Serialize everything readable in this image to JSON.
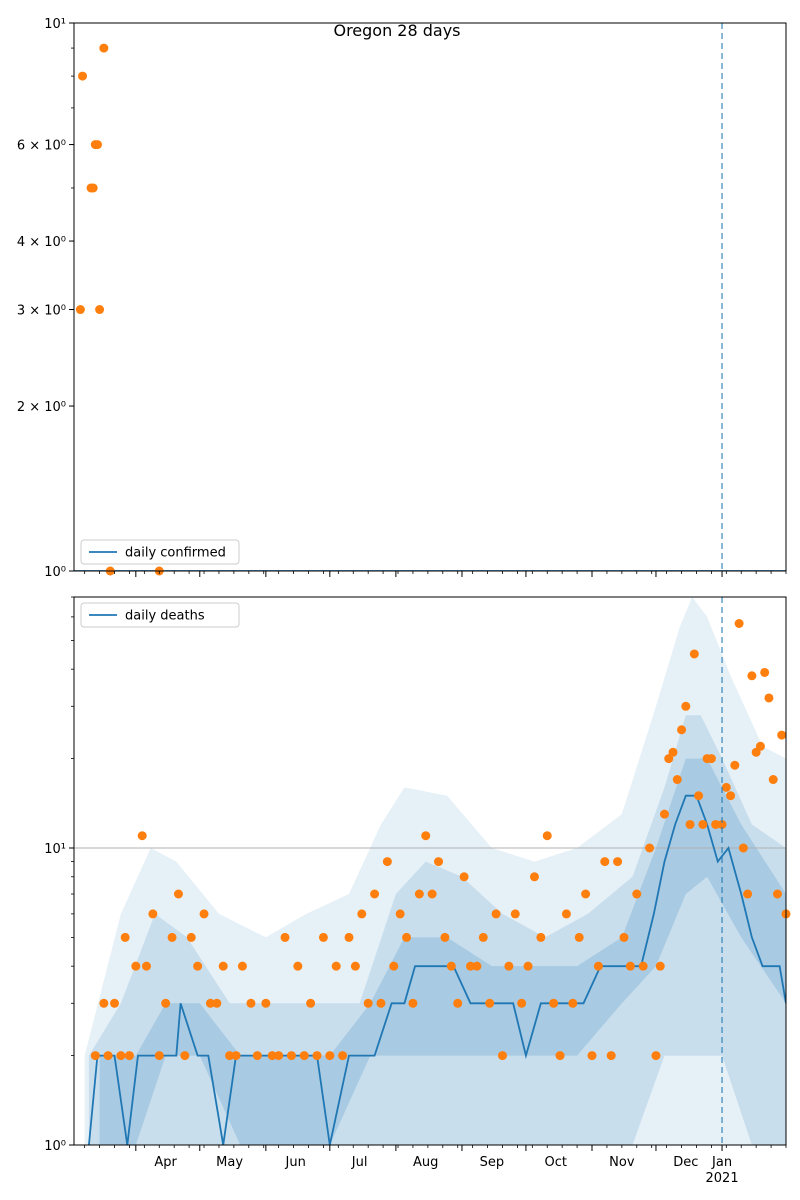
{
  "figure": {
    "title": "Oregon 28 days",
    "x_tick_labels": [
      "Apr",
      "May",
      "Jun",
      "Jul",
      "Aug",
      "Sep",
      "Oct",
      "Nov",
      "Dec",
      "Jan"
    ],
    "year_label": "2021",
    "forecast_start": "2021-01-01",
    "colors": {
      "line": "#1f77b4",
      "points": "#ff7f0e",
      "band": "#1f77b4",
      "vline": "#1f77b4"
    }
  },
  "chart_data": [
    {
      "type": "line",
      "title": "Oregon 28 days",
      "legend": [
        "daily confirmed"
      ],
      "legend_position": "lower-left",
      "yscale": "log",
      "ylim": [
        1,
        10
      ],
      "y_ticks": [
        {
          "value": 1,
          "label": "10⁰"
        },
        {
          "value": 2,
          "label": "2 × 10⁰"
        },
        {
          "value": 3,
          "label": "3 × 10⁰"
        },
        {
          "value": 4,
          "label": "4 × 10⁰"
        },
        {
          "value": 6,
          "label": "6 × 10⁰"
        },
        {
          "value": 10,
          "label": "10¹"
        }
      ],
      "xlim": [
        "2020-03-03",
        "2021-01-31"
      ],
      "series": [
        {
          "name": "daily confirmed",
          "kind": "line",
          "x": [
            "2020-03-03",
            "2021-01-31"
          ],
          "values": [
            1,
            1
          ]
        },
        {
          "kind": "scatter",
          "x": [
            "2020-03-06",
            "2020-03-07",
            "2020-03-11",
            "2020-03-12",
            "2020-03-13",
            "2020-03-14",
            "2020-03-15",
            "2020-03-17",
            "2020-03-20",
            "2020-04-12"
          ],
          "values": [
            3,
            8,
            5,
            5,
            6,
            6,
            3,
            9,
            1,
            1
          ]
        }
      ]
    },
    {
      "type": "line",
      "legend": [
        "daily deaths"
      ],
      "legend_position": "top-left",
      "yscale": "log",
      "ylim": [
        1,
        70
      ],
      "y_ticks": [
        {
          "value": 1,
          "label": "10⁰"
        },
        {
          "value": 10,
          "label": "10¹"
        }
      ],
      "grid_y": [
        10
      ],
      "xlim": [
        "2020-03-03",
        "2021-01-31"
      ],
      "series": [
        {
          "name": "daily deaths",
          "kind": "line",
          "x": [
            "2020-03-10",
            "2020-03-14",
            "2020-03-22",
            "2020-03-28",
            "2020-04-02",
            "2020-04-10",
            "2020-04-20",
            "2020-04-22",
            "2020-04-30",
            "2020-05-05",
            "2020-05-12",
            "2020-05-18",
            "2020-06-10",
            "2020-06-20",
            "2020-06-25",
            "2020-07-01",
            "2020-07-10",
            "2020-07-15",
            "2020-07-22",
            "2020-07-30",
            "2020-08-05",
            "2020-08-10",
            "2020-08-20",
            "2020-08-28",
            "2020-09-05",
            "2020-09-12",
            "2020-09-20",
            "2020-09-25",
            "2020-10-01",
            "2020-10-08",
            "2020-10-15",
            "2020-10-22",
            "2020-10-28",
            "2020-11-05",
            "2020-11-12",
            "2020-11-18",
            "2020-11-24",
            "2020-11-30",
            "2020-12-05",
            "2020-12-10",
            "2020-12-15",
            "2020-12-20",
            "2020-12-25",
            "2020-12-30",
            "2021-01-04",
            "2021-01-10",
            "2021-01-15",
            "2021-01-20",
            "2021-01-24",
            "2021-01-28",
            "2021-01-31"
          ],
          "values": [
            1,
            2,
            2,
            1,
            2,
            2,
            2,
            3,
            2,
            2,
            1,
            2,
            2,
            2,
            2,
            1,
            2,
            2,
            2,
            3,
            3,
            4,
            4,
            4,
            3,
            3,
            3,
            3,
            2,
            3,
            3,
            3,
            3,
            4,
            4,
            4,
            4,
            6,
            9,
            12,
            15,
            15,
            12,
            9,
            10,
            7,
            5,
            4,
            4,
            4,
            3
          ]
        },
        {
          "kind": "band",
          "name": "outer interval",
          "x": [
            "2020-03-08",
            "2020-03-25",
            "2020-04-08",
            "2020-04-20",
            "2020-05-10",
            "2020-06-01",
            "2020-06-20",
            "2020-07-10",
            "2020-07-25",
            "2020-08-05",
            "2020-08-25",
            "2020-09-15",
            "2020-10-05",
            "2020-10-25",
            "2020-11-15",
            "2020-12-01",
            "2020-12-12",
            "2020-12-18",
            "2020-12-25",
            "2021-01-05",
            "2021-01-20",
            "2021-01-31"
          ],
          "upper": [
            2,
            6,
            10,
            9,
            6,
            5,
            6,
            7,
            12,
            16,
            15,
            10,
            9,
            10,
            13,
            30,
            55,
            70,
            60,
            38,
            22,
            20
          ],
          "lower": [
            1,
            1,
            1,
            1,
            1,
            1,
            1,
            1,
            1,
            1,
            1,
            1,
            1,
            1,
            1,
            1,
            1,
            1,
            1,
            1,
            1,
            1
          ]
        },
        {
          "kind": "band",
          "name": "middle interval",
          "x": [
            "2020-03-10",
            "2020-03-25",
            "2020-04-10",
            "2020-04-25",
            "2020-05-15",
            "2020-06-05",
            "2020-06-25",
            "2020-07-15",
            "2020-08-01",
            "2020-08-15",
            "2020-09-01",
            "2020-09-20",
            "2020-10-10",
            "2020-10-30",
            "2020-11-20",
            "2020-12-05",
            "2020-12-15",
            "2020-12-22",
            "2021-01-01",
            "2021-01-15",
            "2021-01-31"
          ],
          "upper": [
            2,
            3,
            6,
            5,
            3,
            3,
            3,
            3,
            7,
            9,
            8,
            6,
            5,
            6,
            8,
            16,
            28,
            28,
            20,
            12,
            10
          ],
          "lower": [
            1,
            1,
            1,
            1,
            1,
            1,
            1,
            1,
            1,
            1,
            1,
            1,
            1,
            1,
            1,
            2,
            2,
            2,
            2,
            1,
            1
          ]
        },
        {
          "kind": "band",
          "name": "inner interval",
          "x": [
            "2020-03-15",
            "2020-04-01",
            "2020-04-15",
            "2020-05-01",
            "2020-05-20",
            "2020-06-10",
            "2020-07-01",
            "2020-07-20",
            "2020-08-05",
            "2020-08-25",
            "2020-09-15",
            "2020-10-05",
            "2020-10-25",
            "2020-11-15",
            "2020-12-01",
            "2020-12-15",
            "2020-12-25",
            "2021-01-10",
            "2021-01-31"
          ],
          "upper": [
            2,
            2,
            3,
            3,
            2,
            2,
            2,
            3,
            5,
            5,
            4,
            4,
            4,
            5,
            10,
            20,
            20,
            12,
            7
          ],
          "lower": [
            1,
            1,
            2,
            2,
            1,
            1,
            1,
            2,
            2,
            2,
            2,
            2,
            2,
            3,
            4,
            7,
            8,
            5,
            3
          ]
        },
        {
          "kind": "scatter",
          "x": [
            "2020-03-13",
            "2020-03-17",
            "2020-03-19",
            "2020-03-22",
            "2020-03-25",
            "2020-03-27",
            "2020-03-29",
            "2020-04-01",
            "2020-04-04",
            "2020-04-06",
            "2020-04-09",
            "2020-04-12",
            "2020-04-15",
            "2020-04-18",
            "2020-04-21",
            "2020-04-24",
            "2020-04-27",
            "2020-04-30",
            "2020-05-03",
            "2020-05-06",
            "2020-05-09",
            "2020-05-12",
            "2020-05-15",
            "2020-05-18",
            "2020-05-21",
            "2020-05-25",
            "2020-05-28",
            "2020-06-01",
            "2020-06-04",
            "2020-06-07",
            "2020-06-10",
            "2020-06-13",
            "2020-06-16",
            "2020-06-19",
            "2020-06-22",
            "2020-06-25",
            "2020-06-28",
            "2020-07-01",
            "2020-07-04",
            "2020-07-07",
            "2020-07-10",
            "2020-07-13",
            "2020-07-16",
            "2020-07-19",
            "2020-07-22",
            "2020-07-25",
            "2020-07-28",
            "2020-07-31",
            "2020-08-03",
            "2020-08-06",
            "2020-08-09",
            "2020-08-12",
            "2020-08-15",
            "2020-08-18",
            "2020-08-21",
            "2020-08-24",
            "2020-08-27",
            "2020-08-30",
            "2020-09-02",
            "2020-09-05",
            "2020-09-08",
            "2020-09-11",
            "2020-09-14",
            "2020-09-17",
            "2020-09-20",
            "2020-09-23",
            "2020-09-26",
            "2020-09-29",
            "2020-10-02",
            "2020-10-05",
            "2020-10-08",
            "2020-10-11",
            "2020-10-14",
            "2020-10-17",
            "2020-10-20",
            "2020-10-23",
            "2020-10-26",
            "2020-10-29",
            "2020-11-01",
            "2020-11-04",
            "2020-11-07",
            "2020-11-10",
            "2020-11-13",
            "2020-11-16",
            "2020-11-19",
            "2020-11-22",
            "2020-11-25",
            "2020-11-28",
            "2020-12-01",
            "2020-12-03",
            "2020-12-05",
            "2020-12-07",
            "2020-12-09",
            "2020-12-11",
            "2020-12-13",
            "2020-12-15",
            "2020-12-17",
            "2020-12-19",
            "2020-12-21",
            "2020-12-23",
            "2020-12-25",
            "2020-12-27",
            "2020-12-29",
            "2021-01-01",
            "2021-01-03",
            "2021-01-05",
            "2021-01-07",
            "2021-01-09",
            "2021-01-11",
            "2021-01-13",
            "2021-01-15",
            "2021-01-17",
            "2021-01-19",
            "2021-01-21",
            "2021-01-23",
            "2021-01-25",
            "2021-01-27",
            "2021-01-29",
            "2021-01-31"
          ],
          "values": [
            2,
            3,
            2,
            3,
            2,
            5,
            2,
            4,
            11,
            4,
            6,
            2,
            3,
            5,
            7,
            2,
            5,
            4,
            6,
            3,
            3,
            4,
            2,
            2,
            4,
            3,
            2,
            3,
            2,
            2,
            5,
            2,
            4,
            2,
            3,
            2,
            5,
            2,
            4,
            2,
            5,
            4,
            6,
            3,
            7,
            3,
            9,
            4,
            6,
            5,
            3,
            7,
            11,
            7,
            9,
            5,
            4,
            3,
            8,
            4,
            4,
            5,
            3,
            6,
            2,
            4,
            6,
            3,
            4,
            8,
            5,
            11,
            3,
            2,
            6,
            3,
            5,
            7,
            2,
            4,
            9,
            2,
            9,
            5,
            4,
            7,
            4,
            10,
            2,
            4,
            13,
            20,
            21,
            17,
            25,
            30,
            12,
            45,
            15,
            12,
            20,
            20,
            12,
            12,
            16,
            15,
            19,
            57,
            10,
            7,
            38,
            21,
            22,
            39,
            32,
            17,
            7,
            24,
            6
          ]
        }
      ]
    }
  ]
}
